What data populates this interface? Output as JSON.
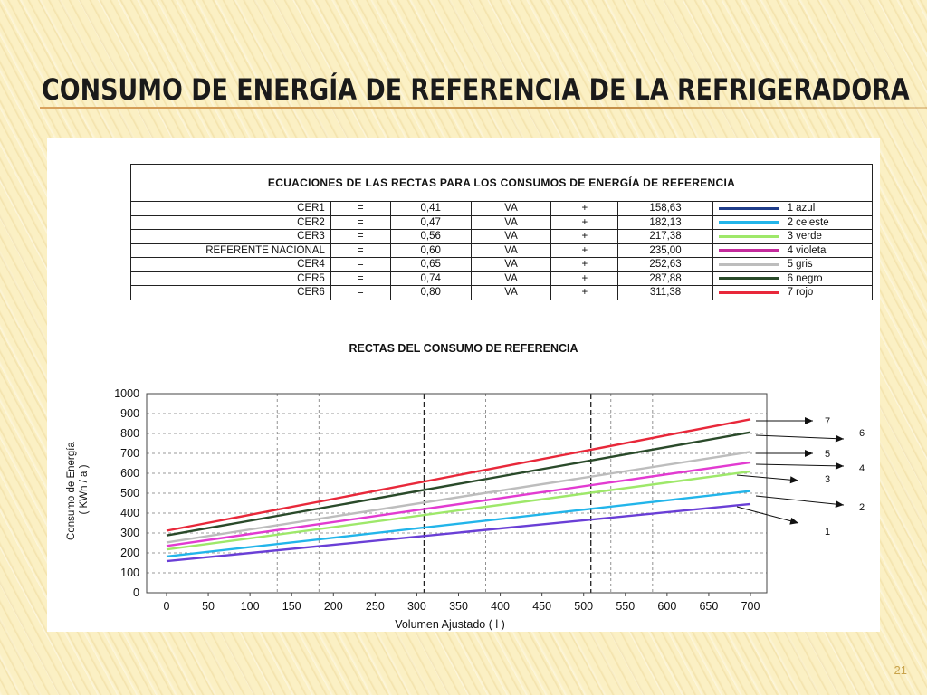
{
  "slide": {
    "title": "Consumo de Energía de Referencia de la Refrigeradora",
    "page_number": "21"
  },
  "table": {
    "title": "ECUACIONES DE LAS RECTAS PARA LOS CONSUMOS DE ENERGÍA DE REFERENCIA",
    "rows": [
      {
        "name": "CER1",
        "eq": "=",
        "coef": "0,41",
        "var": "VA",
        "plus": "+",
        "const": "158,63",
        "legend": "1 azul",
        "color": "#1f3d8a"
      },
      {
        "name": "CER2",
        "eq": "=",
        "coef": "0,47",
        "var": "VA",
        "plus": "+",
        "const": "182,13",
        "legend": "2 celeste",
        "color": "#22b5ea"
      },
      {
        "name": "CER3",
        "eq": "=",
        "coef": "0,56",
        "var": "VA",
        "plus": "+",
        "const": "217,38",
        "legend": "3 verde",
        "color": "#9ee86a"
      },
      {
        "name": "REFERENTE NACIONAL",
        "eq": "=",
        "coef": "0,60",
        "var": "VA",
        "plus": "+",
        "const": "235,00",
        "legend": "4 violeta",
        "color": "#c42a9c"
      },
      {
        "name": "CER4",
        "eq": "=",
        "coef": "0,65",
        "var": "VA",
        "plus": "+",
        "const": "252,63",
        "legend": "5 gris",
        "color": "#bdbdbd"
      },
      {
        "name": "CER5",
        "eq": "=",
        "coef": "0,74",
        "var": "VA",
        "plus": "+",
        "const": "287,88",
        "legend": "6 negro",
        "color": "#2a4a2a"
      },
      {
        "name": "CER6",
        "eq": "=",
        "coef": "0,80",
        "var": "VA",
        "plus": "+",
        "const": "311,38",
        "legend": "7 rojo",
        "color": "#e8283a"
      }
    ]
  },
  "chart_data": {
    "type": "line",
    "title": "RECTAS DEL CONSUMO DE REFERENCIA",
    "xlabel": "Volumen Ajustado ( l )",
    "ylabel_line1": "Consumo de Energía",
    "ylabel_line2": "( KWh / a )",
    "xlim": [
      0,
      700
    ],
    "ylim": [
      0,
      1000
    ],
    "x_ticks": [
      "0",
      "50",
      "100",
      "150",
      "200",
      "250",
      "300",
      "350",
      "400",
      "450",
      "500",
      "550",
      "600",
      "650",
      "700"
    ],
    "y_ticks": [
      "0",
      "100",
      "200",
      "300",
      "400",
      "500",
      "600",
      "700",
      "800",
      "900",
      "1000"
    ],
    "grid": true,
    "x": [
      0,
      700
    ],
    "series": [
      {
        "id": "1",
        "label": "1",
        "color": "#6a3fd6",
        "values": [
          158.63,
          445.63
        ]
      },
      {
        "id": "2",
        "label": "2",
        "color": "#22b5ea",
        "values": [
          182.13,
          511.13
        ]
      },
      {
        "id": "3",
        "label": "3",
        "color": "#9ee86a",
        "values": [
          217.38,
          609.38
        ]
      },
      {
        "id": "4",
        "label": "4",
        "color": "#e23bd1",
        "values": [
          235.0,
          655.0
        ]
      },
      {
        "id": "5",
        "label": "5",
        "color": "#bdbdbd",
        "values": [
          252.63,
          707.63
        ]
      },
      {
        "id": "6",
        "label": "6",
        "color": "#2a4a2a",
        "values": [
          287.88,
          805.88
        ]
      },
      {
        "id": "7",
        "label": "7",
        "color": "#e8283a",
        "values": [
          311.38,
          871.38
        ]
      }
    ]
  }
}
